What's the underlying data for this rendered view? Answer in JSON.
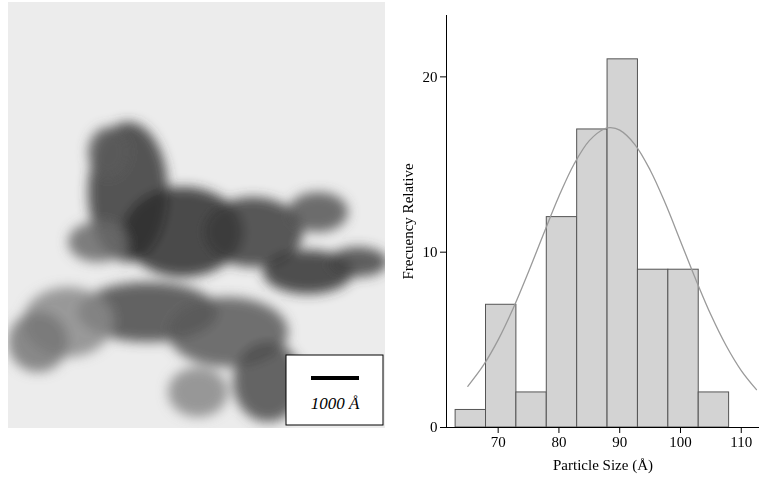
{
  "image": {
    "scale_bar_label": "1000 Å"
  },
  "chart_data": {
    "type": "histogram",
    "x_label": "Particle Size (Å)",
    "y_label": "Frecuency Relative",
    "bins": [
      63,
      68,
      73,
      78,
      83,
      88,
      93,
      98,
      103,
      108
    ],
    "values": [
      1,
      7,
      2,
      12,
      17,
      21,
      9,
      9,
      2
    ],
    "color": "#d3d3d3",
    "xlim": [
      61.5,
      113
    ],
    "xticks": [
      70,
      80,
      90,
      100,
      110
    ],
    "ylim": [
      0,
      23.5
    ],
    "yticks": [
      0,
      10,
      20
    ],
    "grid": false,
    "fit": {
      "type": "line",
      "color": "#9a9a9a",
      "x": [
        65,
        67.5,
        70,
        72.5,
        75,
        77.5,
        80,
        82.5,
        85,
        87.5,
        88.5,
        90,
        92.5,
        95,
        97.5,
        100,
        102.5,
        105,
        107.5,
        110,
        112.5
      ],
      "values": [
        2.35,
        3.51,
        5.0,
        6.82,
        8.89,
        11.07,
        13.19,
        15.03,
        16.36,
        17.04,
        17.1,
        16.96,
        16.14,
        14.69,
        12.79,
        10.63,
        8.46,
        6.43,
        4.68,
        3.25,
        2.16
      ]
    }
  }
}
